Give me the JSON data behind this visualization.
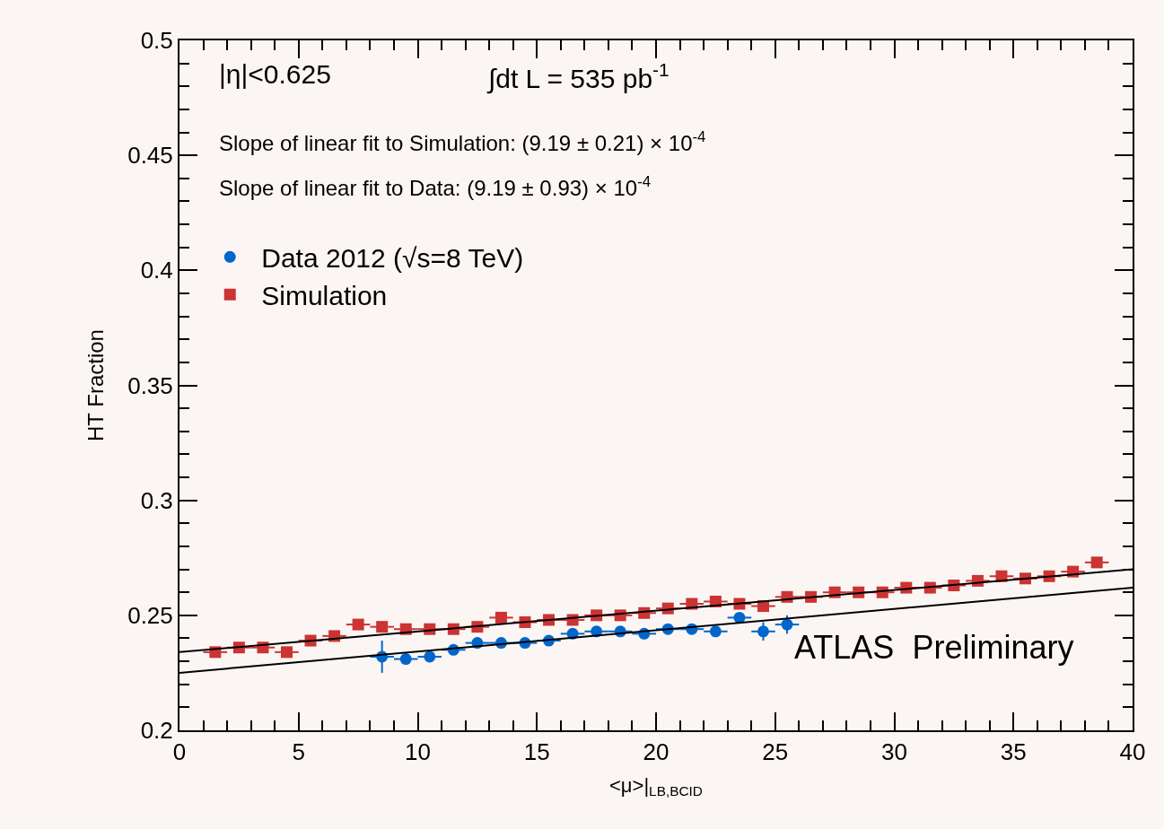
{
  "chart_data": {
    "type": "scatter",
    "xlabel": "<μ>|$_{LB,BCID}$",
    "ylabel": "HT Fraction",
    "xlim": [
      0,
      40
    ],
    "xticks": [
      0,
      5,
      10,
      15,
      20,
      25,
      30,
      35,
      40
    ],
    "ylim": [
      0.2,
      0.5
    ],
    "yticks": [
      0.2,
      0.25,
      0.3,
      0.35,
      0.4,
      0.45,
      0.5
    ],
    "grid": false,
    "legend": "top left",
    "series": [
      {
        "name": "Data 2012 (√s=8 TeV)",
        "color": "#0066cc",
        "marker": "circle",
        "x": [
          8.5,
          9.5,
          10.5,
          11.5,
          12.5,
          13.5,
          14.5,
          15.5,
          16.5,
          17.5,
          18.5,
          19.5,
          20.5,
          21.5,
          22.5,
          23.5,
          24.5,
          25.5
        ],
        "values": [
          0.232,
          0.231,
          0.232,
          0.235,
          0.238,
          0.238,
          0.238,
          0.239,
          0.242,
          0.243,
          0.243,
          0.242,
          0.244,
          0.244,
          0.243,
          0.249,
          0.243,
          0.246
        ],
        "errors": [
          0.007,
          null,
          null,
          null,
          null,
          null,
          null,
          null,
          null,
          null,
          null,
          null,
          null,
          null,
          null,
          null,
          0.004,
          0.004
        ],
        "xerrors": [
          0.5,
          0.5,
          0.5,
          0.5,
          0.5,
          0.5,
          0.5,
          0.5,
          0.5,
          0.5,
          0.5,
          0.5,
          0.5,
          0.5,
          0.5,
          0.5,
          0.5,
          0.5
        ]
      },
      {
        "name": "Simulation",
        "color": "#cc3333",
        "marker": "square",
        "x": [
          1.5,
          2.5,
          3.5,
          4.5,
          5.5,
          6.5,
          7.5,
          8.5,
          9.5,
          10.5,
          11.5,
          12.5,
          13.5,
          14.5,
          15.5,
          16.5,
          17.5,
          18.5,
          19.5,
          20.5,
          21.5,
          22.5,
          23.5,
          24.5,
          25.5,
          26.5,
          27.5,
          28.5,
          29.5,
          30.5,
          31.5,
          32.5,
          33.5,
          34.5,
          35.5,
          36.5,
          37.5,
          38.5
        ],
        "values": [
          0.234,
          0.236,
          0.236,
          0.234,
          0.239,
          0.241,
          0.246,
          0.245,
          0.244,
          0.244,
          0.244,
          0.245,
          0.249,
          0.247,
          0.248,
          0.248,
          0.25,
          0.25,
          0.251,
          0.253,
          0.255,
          0.256,
          0.255,
          0.254,
          0.258,
          0.258,
          0.26,
          0.26,
          0.26,
          0.262,
          0.262,
          0.263,
          0.265,
          0.267,
          0.266,
          0.267,
          0.269,
          0.273
        ],
        "xerrors": [
          0.5,
          0.5,
          0.5,
          0.5,
          0.5,
          0.5,
          0.5,
          0.5,
          0.5,
          0.5,
          0.5,
          0.5,
          0.5,
          0.5,
          0.5,
          0.5,
          0.5,
          0.5,
          0.5,
          0.5,
          0.5,
          0.5,
          0.5,
          0.5,
          0.5,
          0.5,
          0.5,
          0.5,
          0.5,
          0.5,
          0.5,
          0.5,
          0.5,
          0.5,
          0.5,
          0.5,
          0.5,
          0.5
        ]
      },
      {
        "type": "line",
        "color": "#000000",
        "marker": "none",
        "x": [
          0,
          40
        ],
        "values": [
          0.234,
          0.27
        ]
      },
      {
        "type": "line",
        "color": "#000000",
        "marker": "none",
        "x": [
          0,
          40
        ],
        "values": [
          0.225,
          0.262
        ]
      }
    ],
    "annotations": [
      "|η|<0.625",
      "∫dt L = 535 pb$^{-1}$",
      "Slope of linear fit to Simulation: (9.19 ± 0.21) × 10$^{-4}$",
      "Slope of linear fit to Data: (9.19 ± 0.93) × 10$^{-4}$",
      "ATLAS  Preliminary"
    ]
  }
}
